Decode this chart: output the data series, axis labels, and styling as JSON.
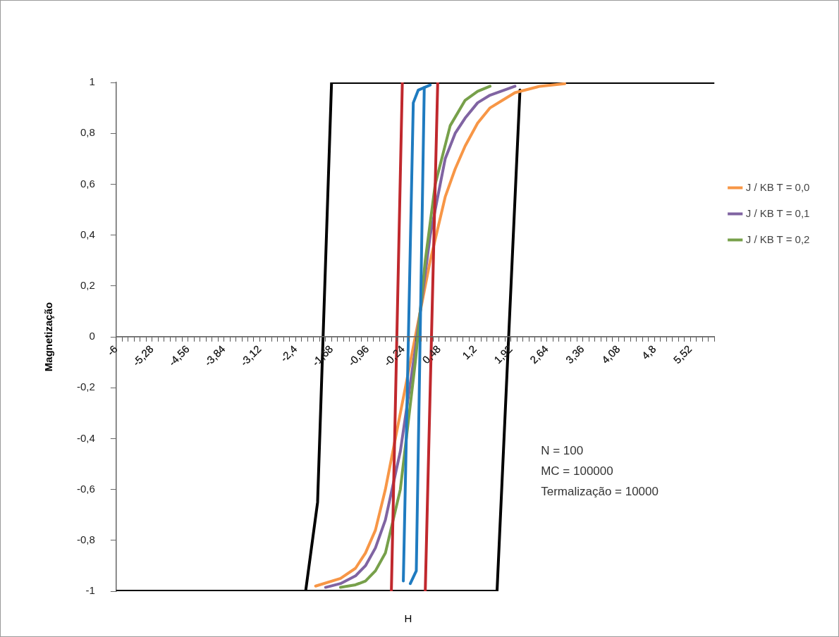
{
  "chart_data": {
    "type": "line",
    "xlabel": "H",
    "ylabel": "Magnetização",
    "annotations": [
      "N = 100",
      "MC = 100000",
      "Termalização = 10000"
    ],
    "series": [
      {
        "color": "#000000",
        "x": [
          -6,
          -2.2,
          -1.96,
          -1.68,
          6
        ],
        "values": [
          -1,
          -1,
          -0.65,
          1,
          1
        ]
      },
      {
        "color": "#000000",
        "x": [
          -2.2,
          1.64,
          2.1
        ],
        "values": [
          -1,
          -1,
          0.97
        ]
      },
      {
        "name": "J / KB T = 0,0",
        "color": "#f79646",
        "x": [
          -2,
          -1.5,
          -1.2,
          -1,
          -0.8,
          -0.6,
          -0.3,
          0,
          0.3,
          0.6,
          0.8,
          1,
          1.25,
          1.5,
          1.75,
          2,
          2.5,
          3
        ],
        "values": [
          -0.98,
          -0.95,
          -0.91,
          -0.85,
          -0.76,
          -0.6,
          -0.3,
          0,
          0.3,
          0.55,
          0.66,
          0.75,
          0.84,
          0.9,
          0.93,
          0.96,
          0.985,
          0.995
        ]
      },
      {
        "name": "J / KB T = 0,1",
        "color": "#8064a2",
        "x": [
          -1.8,
          -1.5,
          -1.2,
          -1,
          -0.8,
          -0.6,
          -0.3,
          0,
          0.3,
          0.6,
          0.8,
          1,
          1.25,
          1.5,
          2
        ],
        "values": [
          -0.985,
          -0.97,
          -0.94,
          -0.9,
          -0.83,
          -0.72,
          -0.45,
          -0.05,
          0.4,
          0.7,
          0.8,
          0.86,
          0.92,
          0.95,
          0.985
        ]
      },
      {
        "name": "J / KB T = 0,2",
        "color": "#77a04a",
        "x": [
          -1.5,
          -1.2,
          -1,
          -0.8,
          -0.6,
          -0.3,
          0,
          0.2,
          0.4,
          0.7,
          1,
          1.25,
          1.5
        ],
        "values": [
          -0.985,
          -0.975,
          -0.96,
          -0.92,
          -0.85,
          -0.6,
          -0.1,
          0.3,
          0.6,
          0.83,
          0.93,
          0.965,
          0.985
        ]
      },
      {
        "color": "#1f7bc0",
        "x": [
          -0.24,
          -0.04,
          0.06,
          0.3
        ],
        "values": [
          -0.96,
          0.92,
          0.97,
          0.99
        ]
      },
      {
        "color": "#1f7bc0",
        "x": [
          -0.1,
          0.02,
          0.18
        ],
        "values": [
          -0.97,
          -0.92,
          0.98
        ]
      },
      {
        "color": "#c0282d",
        "x": [
          -0.48,
          -0.26
        ],
        "values": [
          -1,
          1
        ]
      },
      {
        "color": "#c0282d",
        "x": [
          0.2,
          0.45
        ],
        "values": [
          -1,
          1
        ]
      }
    ],
    "xlim": [
      -6,
      6
    ],
    "xticks": [
      -6,
      {
        "value": -5.88,
        "label": null
      },
      {
        "value": -5.76,
        "label": null
      },
      {
        "value": -5.64,
        "label": null
      },
      {
        "value": -5.52,
        "label": null
      },
      {
        "value": -5.4,
        "label": null
      },
      {
        "value": -5.28,
        "label": "-5,28"
      },
      {
        "value": -5.16,
        "label": null
      },
      {
        "value": -5.04,
        "label": null
      },
      {
        "value": -4.92,
        "label": null
      },
      {
        "value": -4.8,
        "label": null
      },
      {
        "value": -4.68,
        "label": null
      },
      {
        "value": -4.56,
        "label": "-4,56"
      },
      {
        "value": -4.44,
        "label": null
      },
      {
        "value": -4.32,
        "label": null
      },
      {
        "value": -4.2,
        "label": null
      },
      {
        "value": -4.08,
        "label": null
      },
      {
        "value": -3.96,
        "label": null
      },
      {
        "value": -3.84,
        "label": "-3,84"
      },
      {
        "value": -3.72,
        "label": null
      },
      {
        "value": -3.6,
        "label": null
      },
      {
        "value": -3.48,
        "label": null
      },
      {
        "value": -3.36,
        "label": null
      },
      {
        "value": -3.24,
        "label": null
      },
      {
        "value": -3.12,
        "label": "-3,12"
      },
      {
        "value": -3,
        "label": null
      },
      {
        "value": -2.88,
        "label": null
      },
      {
        "value": -2.76,
        "label": null
      },
      {
        "value": -2.64,
        "label": null
      },
      {
        "value": -2.52,
        "label": null
      },
      {
        "value": -2.4,
        "label": "-2,4"
      },
      {
        "value": -2.28,
        "label": null
      },
      {
        "value": -2.16,
        "label": null
      },
      {
        "value": -2.04,
        "label": null
      },
      {
        "value": -1.92,
        "label": null
      },
      {
        "value": -1.8,
        "label": null
      },
      {
        "value": -1.68,
        "label": "-1,68"
      },
      {
        "value": -1.56,
        "label": null
      },
      {
        "value": -1.44,
        "label": null
      },
      {
        "value": -1.32,
        "label": null
      },
      {
        "value": -1.2,
        "label": null
      },
      {
        "value": -1.08,
        "label": null
      },
      {
        "value": -0.96,
        "label": "-0,96"
      },
      {
        "value": -0.84,
        "label": null
      },
      {
        "value": -0.72,
        "label": null
      },
      {
        "value": -0.6,
        "label": null
      },
      {
        "value": -0.48,
        "label": null
      },
      {
        "value": -0.36,
        "label": null
      },
      {
        "value": -0.24,
        "label": "-0,24"
      },
      {
        "value": -0.12,
        "label": null
      },
      {
        "value": 0,
        "label": null
      },
      {
        "value": 0.12,
        "label": null
      },
      {
        "value": 0.24,
        "label": null
      },
      {
        "value": 0.36,
        "label": null
      },
      {
        "value": 0.48,
        "label": "0,48"
      },
      {
        "value": 0.6,
        "label": null
      },
      {
        "value": 0.72,
        "label": null
      },
      {
        "value": 0.84,
        "label": null
      },
      {
        "value": 0.96,
        "label": null
      },
      {
        "value": 1.08,
        "label": null
      },
      {
        "value": 1.2,
        "label": "1,2"
      },
      {
        "value": 1.32,
        "label": null
      },
      {
        "value": 1.44,
        "label": null
      },
      {
        "value": 1.56,
        "label": null
      },
      {
        "value": 1.68,
        "label": null
      },
      {
        "value": 1.8,
        "label": null
      },
      {
        "value": 1.92,
        "label": "1,92"
      },
      {
        "value": 2.04,
        "label": null
      },
      {
        "value": 2.16,
        "label": null
      },
      {
        "value": 2.28,
        "label": null
      },
      {
        "value": 2.4,
        "label": null
      },
      {
        "value": 2.52,
        "label": null
      },
      {
        "value": 2.64,
        "label": "2,64"
      },
      {
        "value": 2.76,
        "label": null
      },
      {
        "value": 2.88,
        "label": null
      },
      {
        "value": 3,
        "label": null
      },
      {
        "value": 3.12,
        "label": null
      },
      {
        "value": 3.24,
        "label": null
      },
      {
        "value": 3.36,
        "label": "3,36"
      },
      {
        "value": 3.48,
        "label": null
      },
      {
        "value": 3.6,
        "label": null
      },
      {
        "value": 3.72,
        "label": null
      },
      {
        "value": 3.84,
        "label": null
      },
      {
        "value": 3.96,
        "label": null
      },
      {
        "value": 4.08,
        "label": "4,08"
      },
      {
        "value": 4.2,
        "label": null
      },
      {
        "value": 4.32,
        "label": null
      },
      {
        "value": 4.44,
        "label": null
      },
      {
        "value": 4.56,
        "label": null
      },
      {
        "value": 4.68,
        "label": null
      },
      {
        "value": 4.8,
        "label": "4,8"
      },
      {
        "value": 4.92,
        "label": null
      },
      {
        "value": 5.04,
        "label": null
      },
      {
        "value": 5.16,
        "label": null
      },
      {
        "value": 5.28,
        "label": null
      },
      {
        "value": 5.4,
        "label": null
      },
      {
        "value": 5.52,
        "label": "5,52"
      },
      {
        "value": 5.64,
        "label": null
      },
      {
        "value": 5.76,
        "label": null
      },
      {
        "value": 5.88,
        "label": null
      },
      {
        "value": 6,
        "label": null
      }
    ],
    "ylim": [
      -1,
      1
    ],
    "yticks": [
      -1,
      {
        "value": -0.8,
        "label": "-0,8"
      },
      {
        "value": -0.6,
        "label": "-0,6"
      },
      {
        "value": -0.4,
        "label": "-0,4"
      },
      {
        "value": -0.2,
        "label": "-0,2"
      },
      0,
      {
        "value": 0.2,
        "label": "0,2"
      },
      {
        "value": 0.4,
        "label": "0,4"
      },
      {
        "value": 0.6,
        "label": "0,6"
      },
      {
        "value": 0.8,
        "label": "0,8"
      },
      1
    ],
    "grid": false,
    "legend": "right",
    "marker": "none",
    "line_style": "solid"
  }
}
